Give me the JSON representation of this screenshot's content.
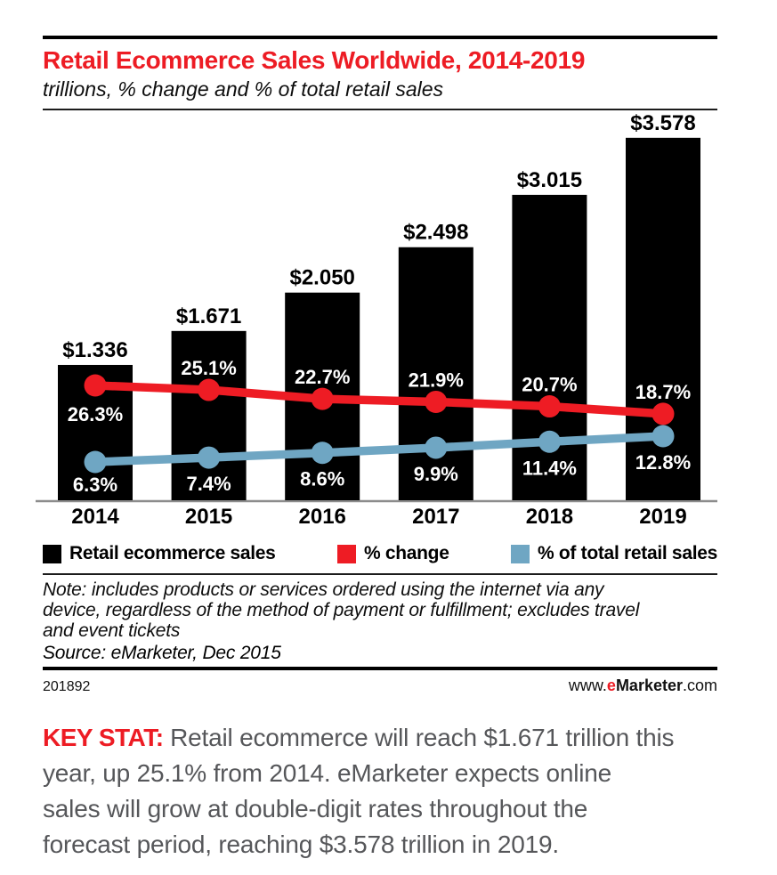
{
  "header": {
    "title": "Retail Ecommerce Sales Worldwide, 2014-2019",
    "subtitle": "trillions, % change and % of total retail sales"
  },
  "chart_data": {
    "type": "bar",
    "title": "Retail Ecommerce Sales Worldwide, 2014-2019",
    "subtitle": "trillions, % change and % of total retail sales",
    "xlabel": "",
    "ylabel": "",
    "grid": false,
    "legend_position": "bottom",
    "categories": [
      "2014",
      "2015",
      "2016",
      "2017",
      "2018",
      "2019"
    ],
    "series": [
      {
        "name": "Retail ecommerce sales",
        "type": "bar",
        "color": "#000000",
        "unit": "trillions USD",
        "values": [
          1.336,
          1.671,
          2.05,
          2.498,
          3.015,
          3.578
        ],
        "labels": [
          "$1.336",
          "$1.671",
          "$2.050",
          "$2.498",
          "$3.015",
          "$3.578"
        ]
      },
      {
        "name": "% change",
        "type": "line",
        "color": "#ee1c24",
        "unit": "percent",
        "values": [
          26.3,
          25.1,
          22.7,
          21.9,
          20.7,
          18.7
        ],
        "labels": [
          "26.3%",
          "25.1%",
          "22.7%",
          "21.9%",
          "20.7%",
          "18.7%"
        ]
      },
      {
        "name": "% of total retail sales",
        "type": "line",
        "color": "#6fa6c3",
        "unit": "percent",
        "values": [
          6.3,
          7.4,
          8.6,
          9.9,
          11.4,
          12.8
        ],
        "labels": [
          "6.3%",
          "7.4%",
          "8.6%",
          "9.9%",
          "11.4%",
          "12.8%"
        ]
      }
    ]
  },
  "note": {
    "note_text": "Note: includes products or services ordered using the internet via any\ndevice, regardless of the method of payment or fulfillment; excludes travel\nand event tickets",
    "source_text": "Source: eMarketer, Dec 2015"
  },
  "footer": {
    "chart_id": "201892",
    "site_www": "www.",
    "site_e": "e",
    "site_marketer": "Marketer",
    "site_com": ".com"
  },
  "key_stat": {
    "label": "KEY STAT:",
    "text": "Retail ecommerce will reach $1.671 trillion this\nyear, up 25.1% from 2014. eMarketer expects online\nsales will grow at double-digit rates throughout the\nforecast period, reaching $3.578 trillion in 2019."
  }
}
